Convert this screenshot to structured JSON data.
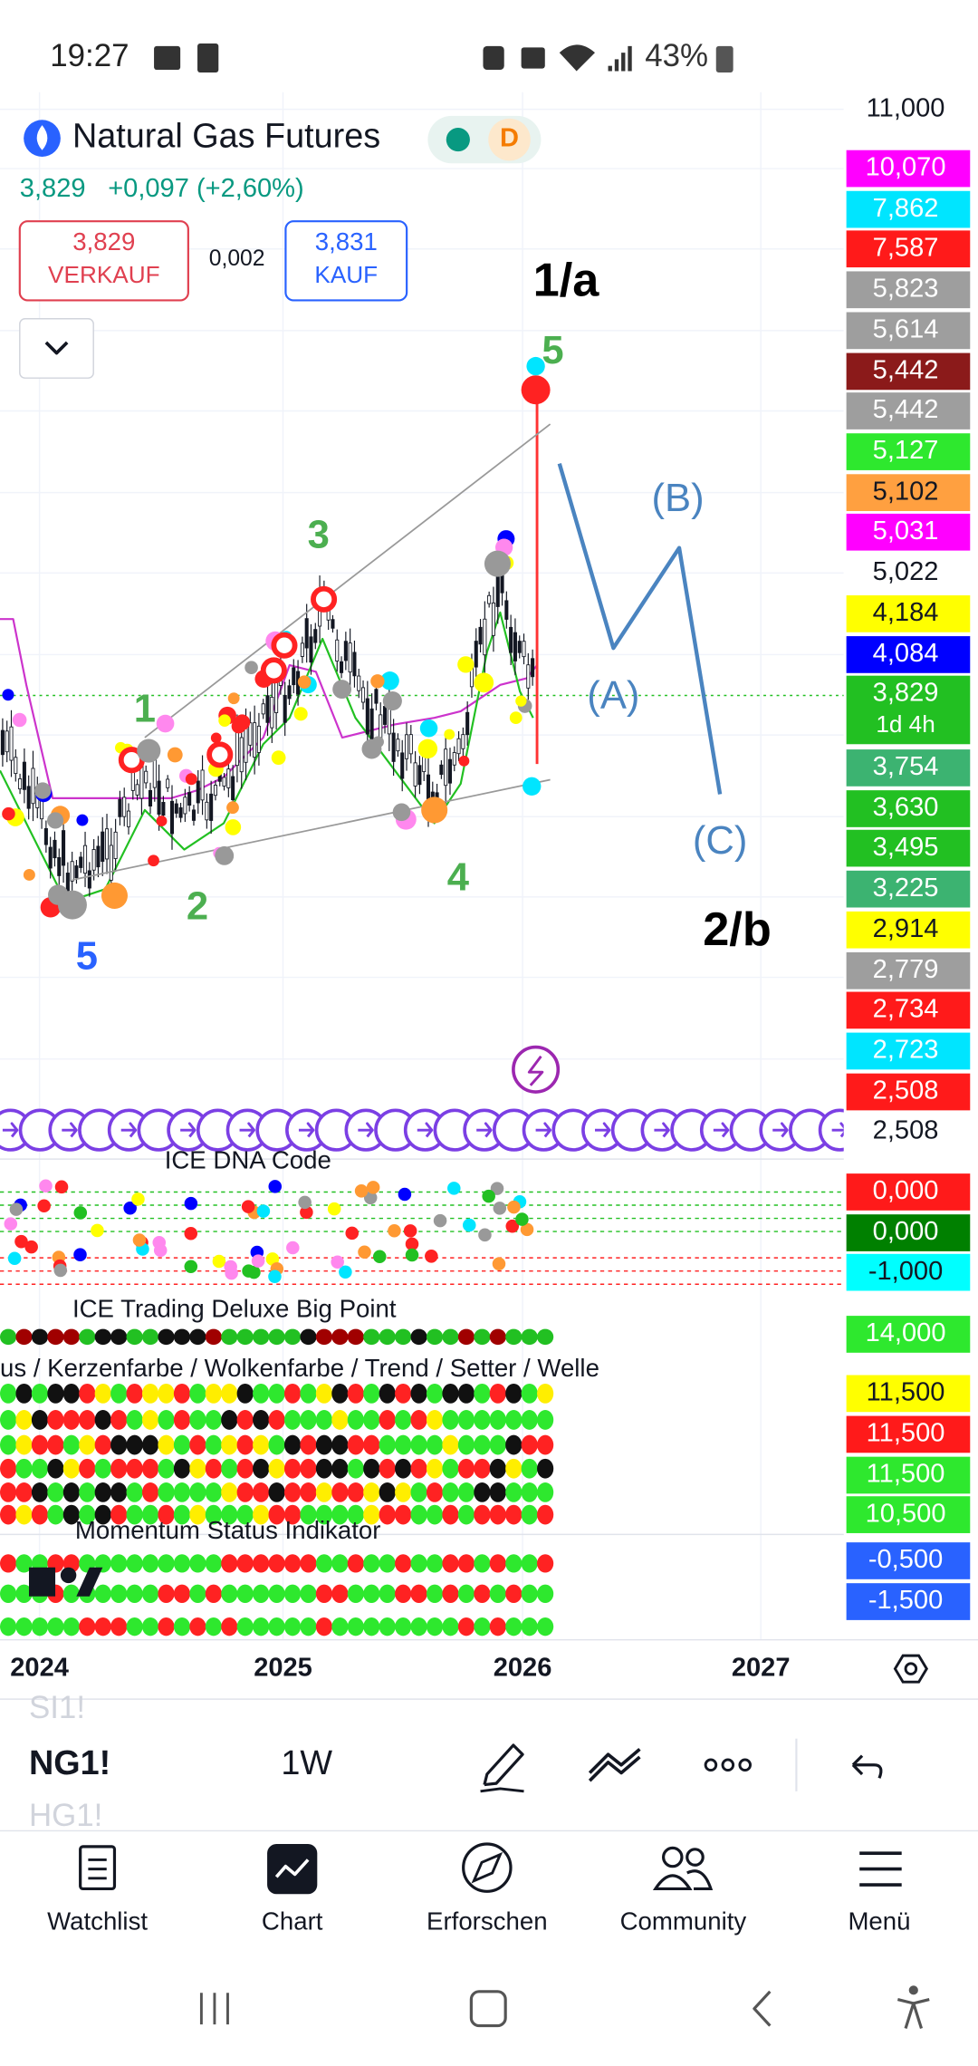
{
  "status_bar": {
    "time": "19:27",
    "battery": "43%"
  },
  "header": {
    "title": "Natural Gas Futures",
    "interval_badge": "D",
    "last_price": "3,829",
    "change": "+0,097 (+2,60%)",
    "sell": {
      "price": "3,829",
      "label": "VERKAUF"
    },
    "spread": "0,002",
    "buy": {
      "price": "3,831",
      "label": "KAUF"
    }
  },
  "annotations": [
    {
      "text": "1/a",
      "color": "#000000"
    },
    {
      "text": "5",
      "color": "#4caf50"
    },
    {
      "text": "3",
      "color": "#4caf50"
    },
    {
      "text": "1",
      "color": "#4caf50"
    },
    {
      "text": "2",
      "color": "#4caf50"
    },
    {
      "text": "4",
      "color": "#4caf50"
    },
    {
      "text": "5",
      "color": "#2962ff"
    },
    {
      "text": "(A)",
      "color": "#4a84c0"
    },
    {
      "text": "(B)",
      "color": "#4a84c0"
    },
    {
      "text": "(C)",
      "color": "#4a84c0"
    },
    {
      "text": "2/b",
      "color": "#000000"
    }
  ],
  "price_scale": [
    {
      "label": "11,000"
    },
    {
      "label": "10,070",
      "color": "#ff00ff"
    },
    {
      "label": "7,862",
      "color": "#00e5ff"
    },
    {
      "label": "7,587",
      "color": "#ff1a1a"
    },
    {
      "label": "5,823",
      "color": "#9e9e9e"
    },
    {
      "label": "5,614",
      "color": "#9e9e9e"
    },
    {
      "label": "5,442",
      "color": "#8b1a1a"
    },
    {
      "label": "5,442",
      "color": "#9e9e9e"
    },
    {
      "label": "5,127",
      "color": "#2ee82e"
    },
    {
      "label": "5,102",
      "color": "#ffa040"
    },
    {
      "label": "5,031",
      "color": "#ff00ff"
    },
    {
      "label": "5,022"
    },
    {
      "label": "4,184",
      "color": "#ffff00"
    },
    {
      "label": "4,084",
      "color": "#0000ff"
    },
    {
      "label": "3,829",
      "color": "#22c022"
    },
    {
      "label": "3,754",
      "color": "#3cb371"
    },
    {
      "label": "3,630",
      "color": "#22c022"
    },
    {
      "label": "3,495",
      "color": "#22c022"
    },
    {
      "label": "3,225",
      "color": "#3cb371"
    },
    {
      "label": "2,914",
      "color": "#ffff00"
    },
    {
      "label": "2,779",
      "color": "#9e9e9e"
    },
    {
      "label": "2,734",
      "color": "#ff1a1a"
    },
    {
      "label": "2,723",
      "color": "#00e5ff"
    },
    {
      "label": "2,508",
      "color": "#ff1a1a"
    },
    {
      "label": "2,508"
    },
    {
      "label": "0,000",
      "color": "#ff1a1a"
    },
    {
      "label": "0,000",
      "color": "#008000"
    },
    {
      "label": "-1,000",
      "color": "#00ffff"
    },
    {
      "label": "14,000",
      "color": "#2ee82e"
    },
    {
      "label": "11,500",
      "color": "#ffff00"
    },
    {
      "label": "11,500",
      "color": "#ff1a1a"
    },
    {
      "label": "11,500",
      "color": "#2ee82e"
    },
    {
      "label": "10,500",
      "color": "#2ee82e"
    },
    {
      "label": "-0,500",
      "color": "#2962ff"
    },
    {
      "label": "-1,500",
      "color": "#2962ff"
    }
  ],
  "countdown": "1d 4h",
  "indicators": [
    "ICE DNA Code",
    "ICE Trading Deluxe Big Point",
    "us / Kerzenfarbe / Wolkenfarbe / Trend / Setter / Welle",
    "Momentum Status Indikator"
  ],
  "x_axis": [
    "2024",
    "2025",
    "2026",
    "2027"
  ],
  "toolbar": {
    "prev_symbol": "SI1!",
    "symbol": "NG1!",
    "next_symbol": "HG1!",
    "interval": "1W"
  },
  "nav": [
    "Watchlist",
    "Chart",
    "Erforschen",
    "Community",
    "Menü"
  ]
}
